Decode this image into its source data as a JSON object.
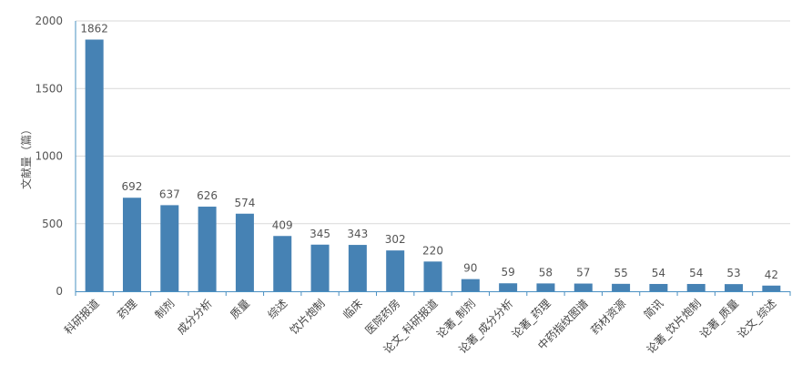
{
  "chart_data": {
    "type": "bar",
    "title": "",
    "xlabel": "",
    "ylabel": "文献量（篇）",
    "ylim": [
      0,
      2000
    ],
    "yticks": [
      0,
      500,
      1000,
      1500,
      2000
    ],
    "grid": true,
    "legend": "none",
    "bar_color": "#4682b4",
    "categories": [
      "科研报道",
      "药理",
      "制剂",
      "成分分析",
      "质量",
      "综述",
      "饮片炮制",
      "临床",
      "医院药房",
      "论文_科研报道",
      "论著_制剂",
      "论著_成分分析",
      "论著_药理",
      "中药指纹图谱",
      "药材资源",
      "简讯",
      "论著_饮片炮制",
      "论著_质量",
      "论文_综述"
    ],
    "values": [
      1862,
      692,
      637,
      626,
      574,
      409,
      345,
      343,
      302,
      220,
      90,
      59,
      58,
      57,
      55,
      54,
      54,
      53,
      42
    ]
  }
}
